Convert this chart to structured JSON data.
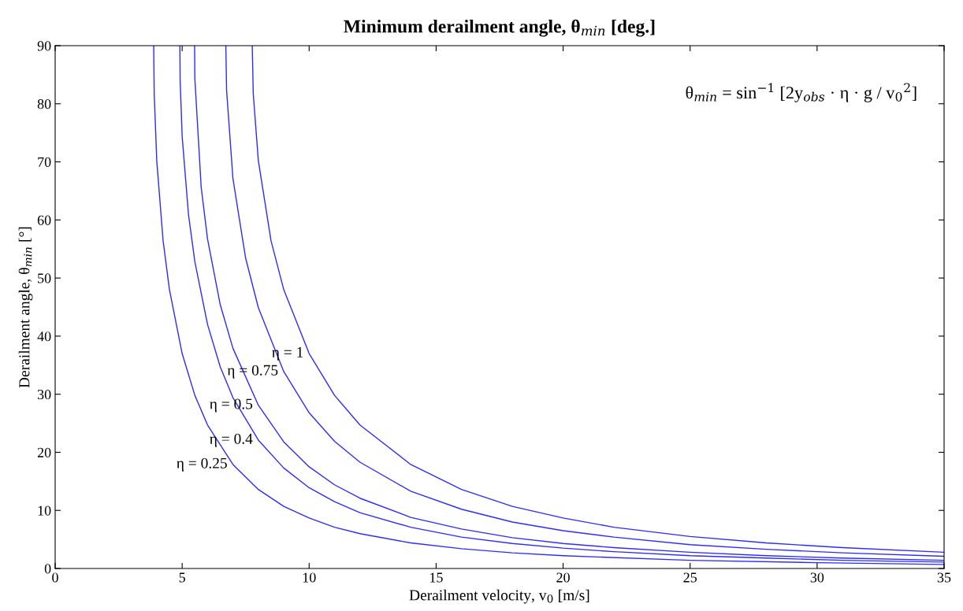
{
  "chart_data": {
    "type": "line",
    "title": "Minimum derailment angle, θ$_{min}$ [deg.]",
    "xlabel": "Derailment velocity, v$_{0}$ [m/s]",
    "ylabel": "Derailment angle, θ$_{min}$ [°]",
    "xlim": [
      0,
      35
    ],
    "ylim": [
      0,
      90
    ],
    "xticks": [
      0,
      5,
      10,
      15,
      20,
      25,
      30,
      35
    ],
    "yticks": [
      0,
      10,
      20,
      30,
      40,
      50,
      60,
      70,
      80,
      90
    ],
    "grid": false,
    "legend": false,
    "marker": "none",
    "line_style": "solid",
    "series": [
      {
        "color": "#2b2bff",
        "x": [
          3.88,
          3.9,
          4,
          4.25,
          4.5,
          5,
          5.5,
          6,
          7,
          8,
          9,
          10,
          11,
          12,
          14,
          16,
          18,
          20,
          25,
          30,
          35
        ],
        "values": [
          90,
          81.7,
          70.2,
          56.4,
          48.0,
          37.0,
          29.8,
          24.7,
          17.9,
          13.6,
          10.7,
          8.7,
          7.1,
          6.0,
          4.4,
          3.4,
          2.7,
          2.2,
          1.4,
          1.0,
          0.7
        ]
      },
      {
        "color": "#2b2bff",
        "x": [
          4.91,
          4.92,
          5,
          5.25,
          5.5,
          6,
          6.5,
          7,
          8,
          9,
          10,
          11,
          12,
          14,
          16,
          18,
          20,
          22,
          25,
          28,
          31,
          35
        ],
        "values": [
          90,
          84.1,
          74.4,
          60.9,
          52.8,
          42.0,
          34.7,
          29.4,
          22.1,
          17.3,
          13.9,
          11.5,
          9.6,
          7.1,
          5.4,
          4.3,
          3.5,
          2.9,
          2.2,
          1.8,
          1.4,
          1.1
        ]
      },
      {
        "color": "#2b2bff",
        "x": [
          5.49,
          5.5,
          5.75,
          6,
          6.5,
          7,
          8,
          9,
          10,
          11,
          12,
          14,
          16,
          18,
          20,
          22,
          25,
          28,
          31,
          35
        ],
        "values": [
          90,
          84.3,
          65.6,
          56.7,
          45.4,
          37.9,
          28.1,
          21.8,
          17.5,
          14.4,
          12.1,
          8.8,
          6.8,
          5.3,
          4.3,
          3.6,
          2.8,
          2.2,
          1.8,
          1.4
        ]
      },
      {
        "color": "#2b2bff",
        "x": [
          6.72,
          6.75,
          7,
          7.5,
          8,
          9,
          10,
          11,
          12,
          14,
          16,
          18,
          20,
          22,
          25,
          28,
          31,
          35
        ],
        "values": [
          90,
          82.3,
          67.1,
          53.4,
          44.9,
          33.9,
          26.8,
          21.9,
          18.3,
          13.3,
          10.2,
          8.0,
          6.5,
          5.4,
          4.1,
          3.3,
          2.7,
          2.1
        ]
      },
      {
        "color": "#2b2bff",
        "x": [
          7.76,
          7.8,
          8,
          8.5,
          9,
          10,
          11,
          12,
          14,
          16,
          18,
          20,
          22,
          25,
          28,
          31,
          35
        ],
        "values": [
          90,
          81.7,
          70.2,
          56.4,
          48.0,
          37.0,
          29.8,
          24.7,
          17.9,
          13.6,
          10.7,
          8.7,
          7.1,
          5.5,
          4.4,
          3.6,
          2.8
        ]
      }
    ],
    "annotations": [
      {
        "text": "η = 1",
        "x": 10,
        "y": 37.0
      },
      {
        "text": "η = 0.75",
        "x": 9,
        "y": 33.9
      },
      {
        "text": "η = 0.5",
        "x": 8,
        "y": 28.1
      },
      {
        "text": "η = 0.4",
        "x": 8,
        "y": 22.1
      },
      {
        "text": "η = 0.25",
        "x": 7,
        "y": 17.9
      },
      "θ$_{min}$ = sin$^{−1}$ [2y$_{obs}$ · η · g / v$_{0}$$^{2}$]"
    ]
  }
}
